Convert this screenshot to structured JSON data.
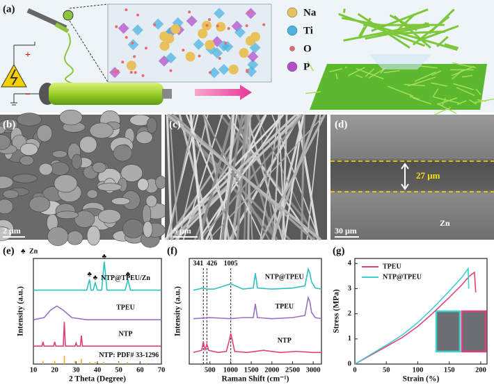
{
  "panel_labels": [
    "(a)",
    "(b)",
    "(c)",
    "(d)",
    "(e)",
    "(f)",
    "(g)"
  ],
  "schematic": {
    "legend": [
      {
        "symbol": "Na",
        "color": "#e8c15a"
      },
      {
        "symbol": "Ti",
        "color": "#4fb3e0"
      },
      {
        "symbol": "O",
        "color": "#e86a6a"
      },
      {
        "symbol": "P",
        "color": "#b54fc9"
      }
    ],
    "polarity": [
      "+",
      "−"
    ]
  },
  "sem": {
    "b": {
      "scale": "2 μm"
    },
    "c": {
      "scale": "5 μm"
    },
    "d": {
      "scale": "30 μm",
      "thickness": "27 μm",
      "substrate": "Zn"
    }
  },
  "chart_data": [
    {
      "type": "line",
      "xlabel": "2 Theta (Degree)",
      "ylabel": "Intensity (a.u.)",
      "xlim": [
        10,
        70
      ],
      "xticks": [
        10,
        20,
        30,
        40,
        50,
        60,
        70
      ],
      "ylim": [
        0,
        100
      ],
      "legend": "inline",
      "series": [
        {
          "name": "NTP@TPEU/Zn",
          "color": "#2fbfbf",
          "x": [
            10,
            20,
            30,
            35,
            36.3,
            37,
            38,
            39,
            40,
            42,
            43.2,
            44.5,
            50,
            53,
            54.3,
            55.5,
            60,
            70
          ],
          "values": [
            70,
            70,
            70,
            70,
            80,
            70,
            70,
            77,
            70,
            70,
            97,
            70,
            70,
            70,
            80,
            70,
            70,
            70
          ]
        },
        {
          "name": "TPEU",
          "color": "#9b6fc4",
          "x": [
            10,
            15,
            18,
            21,
            24,
            28,
            35,
            50,
            70
          ],
          "values": [
            42,
            44,
            51,
            55,
            51,
            44,
            42,
            42,
            42
          ]
        },
        {
          "name": "NTP",
          "color": "#e0407a",
          "x": [
            10,
            14,
            14.5,
            15,
            19.5,
            20,
            20.5,
            24,
            24.5,
            25,
            29.5,
            30,
            30.5,
            32,
            32.5,
            33,
            40,
            50,
            70
          ],
          "values": [
            17,
            17,
            21,
            17,
            17,
            21,
            17,
            17,
            40,
            17,
            17,
            20,
            17,
            17,
            27,
            17,
            17,
            17,
            17
          ]
        }
      ],
      "reference": {
        "label": "NTP: PDF# 33-1296",
        "color": "#f5a623",
        "x": [
          14.5,
          20,
          24.5,
          29.5,
          32.5,
          36.5,
          39,
          43,
          50,
          54,
          63
        ],
        "values": [
          3,
          3,
          8,
          3,
          5,
          2,
          2,
          2,
          2,
          2,
          1
        ]
      },
      "marker": {
        "symbol": "♣",
        "label": "Zn",
        "x": [
          36.3,
          39,
          43.2,
          54.3
        ]
      }
    },
    {
      "type": "line",
      "xlabel": "Raman Shift (cm⁻¹)",
      "ylabel": "Intensity (a.u.)",
      "xlim": [
        0,
        3200
      ],
      "xticks": [
        500,
        1000,
        1500,
        2000,
        2500,
        3000
      ],
      "ylim": [
        0,
        100
      ],
      "legend": "inline",
      "vlines": [
        341,
        426,
        1005
      ],
      "series": [
        {
          "name": "NTP@TPEU",
          "color": "#2fbfbf",
          "x": [
            100,
            341,
            426,
            600,
            1005,
            1300,
            1550,
            1600,
            1650,
            2000,
            2500,
            2800,
            2880,
            2920,
            2960,
            3050,
            3200
          ],
          "values": [
            70,
            72,
            71,
            71,
            76,
            71,
            72,
            86,
            72,
            71,
            72,
            74,
            90,
            86,
            78,
            72,
            71
          ]
        },
        {
          "name": "TPEU",
          "color": "#9b6fc4",
          "x": [
            100,
            500,
            1000,
            1300,
            1550,
            1600,
            1650,
            2000,
            2500,
            2800,
            2880,
            2920,
            2960,
            3050,
            3200
          ],
          "values": [
            43,
            44,
            43,
            44,
            44,
            57,
            44,
            43,
            44,
            46,
            63,
            59,
            49,
            44,
            43
          ]
        },
        {
          "name": "NTP",
          "color": "#e0407a",
          "x": [
            100,
            300,
            341,
            380,
            426,
            470,
            700,
            900,
            960,
            1005,
            1050,
            1100,
            1400,
            1800,
            2200,
            2600,
            3000,
            3200
          ],
          "values": [
            11,
            13,
            21,
            13,
            19,
            13,
            11,
            12,
            21,
            29,
            21,
            12,
            11,
            13,
            11,
            12,
            11,
            11
          ]
        }
      ]
    },
    {
      "type": "line",
      "xlabel": "Strain (%)",
      "ylabel": "Stress (MPa)",
      "xlim": [
        0,
        210
      ],
      "xticks": [
        0,
        50,
        100,
        150,
        200
      ],
      "ylim": [
        0,
        4.2
      ],
      "yticks": [
        0,
        1,
        2,
        3,
        4
      ],
      "legend": "upper left",
      "series": [
        {
          "name": "TPEU",
          "color": "#e0407a",
          "x": [
            0,
            25,
            50,
            75,
            100,
            125,
            150,
            170,
            182,
            190,
            192
          ],
          "values": [
            0,
            0.35,
            0.7,
            1.05,
            1.5,
            2.05,
            2.65,
            3.15,
            3.5,
            3.65,
            2.85
          ]
        },
        {
          "name": "NTP@TPEU",
          "color": "#3ecfcf",
          "x": [
            0,
            25,
            50,
            75,
            100,
            125,
            150,
            170,
            180,
            181
          ],
          "values": [
            0,
            0.38,
            0.75,
            1.15,
            1.65,
            2.25,
            2.9,
            3.45,
            3.8,
            3.0
          ]
        }
      ]
    }
  ]
}
